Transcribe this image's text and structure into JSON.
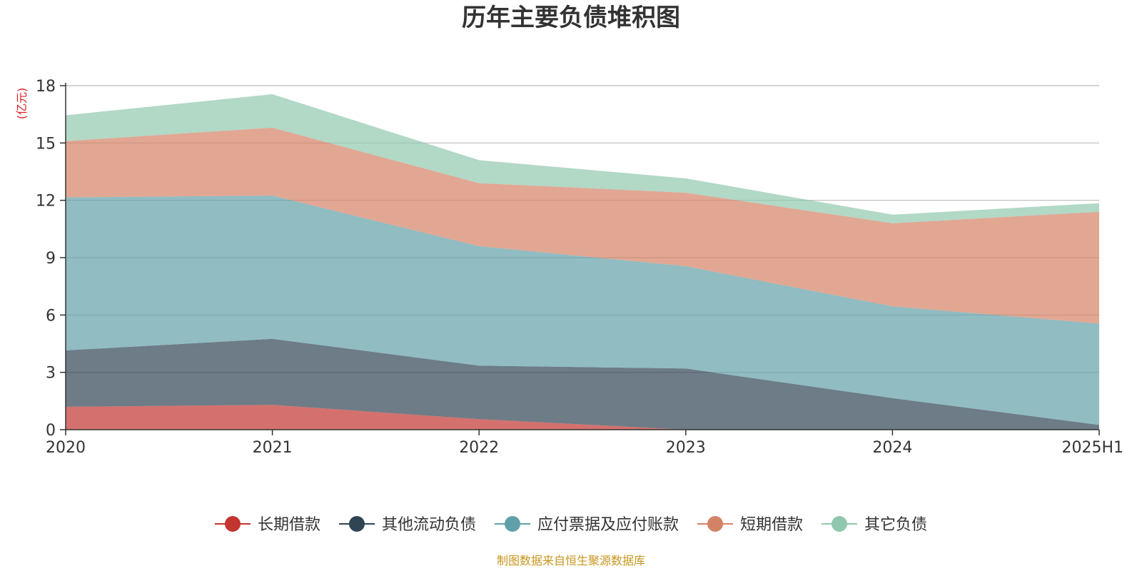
{
  "chart_data": {
    "type": "area",
    "stacked": true,
    "title": "历年主要负债堆积图",
    "unit": "(亿元)",
    "x": [
      "2020",
      "2021",
      "2022",
      "2023",
      "2024",
      "2025H1"
    ],
    "ylim": [
      0,
      18
    ],
    "yticks": [
      "0",
      "3",
      "6",
      "9",
      "12",
      "15",
      "18"
    ],
    "grid": true,
    "legend_position": "bottom-center",
    "series": [
      {
        "name": "长期借款",
        "values": [
          1.2,
          1.3,
          0.55,
          0.0,
          0.0,
          0.0
        ],
        "color": "#c23531"
      },
      {
        "name": "其他流动负债",
        "values": [
          2.95,
          3.45,
          2.8,
          3.2,
          1.65,
          0.25
        ],
        "color": "#2f4554"
      },
      {
        "name": "应付票据及应付账款",
        "values": [
          8.0,
          7.5,
          6.25,
          5.35,
          4.8,
          5.3
        ],
        "color": "#61a0a8"
      },
      {
        "name": "短期借款",
        "values": [
          2.95,
          3.55,
          3.3,
          3.85,
          4.35,
          5.85
        ],
        "color": "#d48265"
      },
      {
        "name": "其它负债",
        "values": [
          1.35,
          1.75,
          1.2,
          0.75,
          0.45,
          0.45
        ],
        "color": "#91c7ae"
      }
    ],
    "source": "制图数据来自恒生聚源数据库"
  }
}
